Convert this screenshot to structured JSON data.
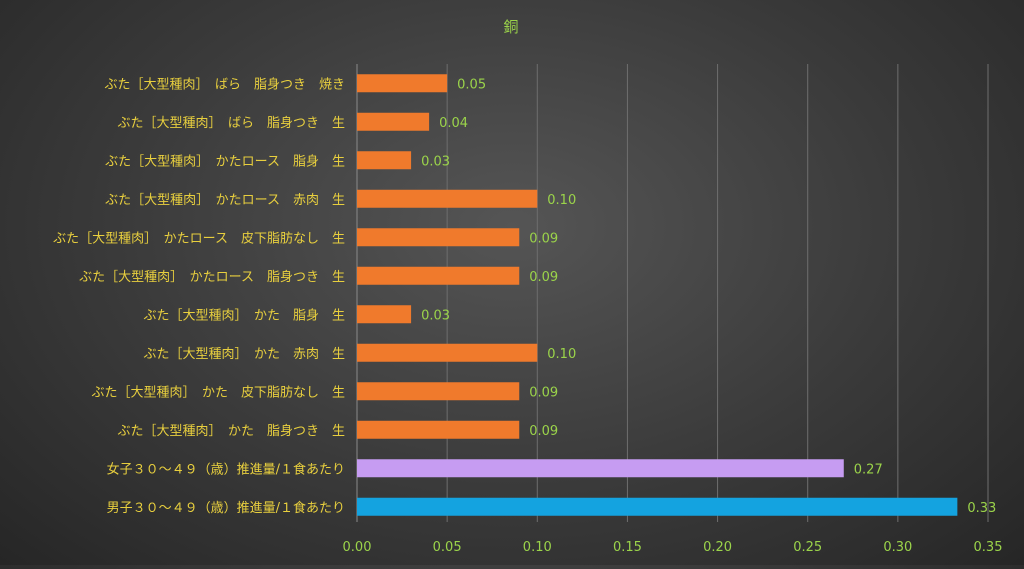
{
  "chart_data": {
    "type": "bar",
    "orientation": "horizontal",
    "title": "銅",
    "xlabel": "",
    "ylabel": "",
    "xlim": [
      0,
      0.35
    ],
    "x_ticks": [
      "0.00",
      "0.05",
      "0.10",
      "0.15",
      "0.20",
      "0.25",
      "0.30",
      "0.35"
    ],
    "grid": "vertical",
    "categories": [
      "ぶた［大型種肉］　ばら　脂身つき　焼き",
      "ぶた［大型種肉］　ばら　脂身つき　生",
      "ぶた［大型種肉］　かたロース　脂身　生",
      "ぶた［大型種肉］　かたロース　赤肉　生",
      "ぶた［大型種肉］　かたロース　皮下脂肪なし　生",
      "ぶた［大型種肉］　かたロース　脂身つき　生",
      "ぶた［大型種肉］　かた　脂身　生",
      "ぶた［大型種肉］　かた　赤肉　生",
      "ぶた［大型種肉］　かた　皮下脂肪なし　生",
      "ぶた［大型種肉］　かた　脂身つき　生",
      "女子３０～４９（歳）推進量/１食あたり",
      "男子３０～４９（歳）推進量/１食あたり"
    ],
    "values": [
      0.05,
      0.04,
      0.03,
      0.1,
      0.09,
      0.09,
      0.03,
      0.1,
      0.09,
      0.09,
      0.27,
      0.333
    ],
    "value_labels": [
      "0.05",
      "0.04",
      "0.03",
      "0.10",
      "0.09",
      "0.09",
      "0.03",
      "0.10",
      "0.09",
      "0.09",
      "0.27",
      "0.33"
    ],
    "bar_colors": [
      "#f07a2c",
      "#f07a2c",
      "#f07a2c",
      "#f07a2c",
      "#f07a2c",
      "#f07a2c",
      "#f07a2c",
      "#f07a2c",
      "#f07a2c",
      "#f07a2c",
      "#c69cf2",
      "#14a3e0"
    ],
    "colors": {
      "title": "#9bd44a",
      "category_label": "#e8cf3e",
      "value_label": "#9bd44a",
      "tick_label": "#9bd44a",
      "grid": "#6e6e6e"
    }
  }
}
